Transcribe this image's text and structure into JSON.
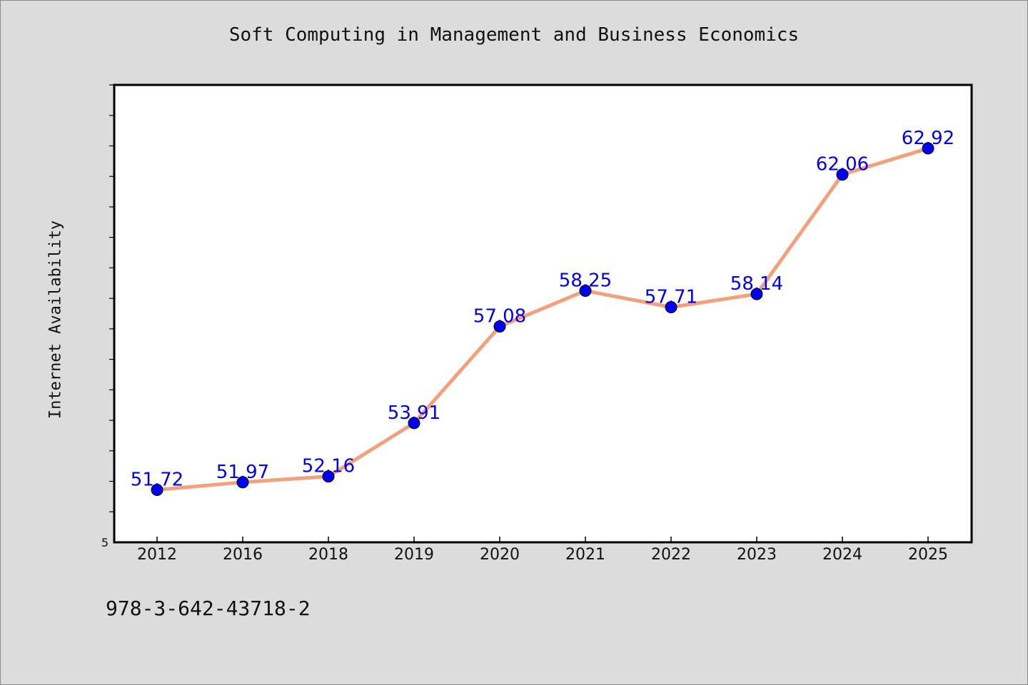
{
  "chart_data": {
    "type": "line",
    "title": "Soft Computing in Management and Business Economics",
    "xlabel": "",
    "ylabel": "Internet Availability",
    "categories": [
      "2012",
      "2016",
      "2018",
      "2019",
      "2020",
      "2021",
      "2022",
      "2023",
      "2024",
      "2025"
    ],
    "series": [
      {
        "values": [
          51.72,
          51.97,
          52.16,
          53.91,
          57.08,
          58.25,
          57.71,
          58.14,
          62.06,
          62.92
        ],
        "line_color": "#f4a07c",
        "marker_color": "#0000ee"
      }
    ],
    "data_labels": [
      "51.72",
      "51.97",
      "52.16",
      "53.91",
      "57.08",
      "58.25",
      "57.71",
      "58.14",
      "62.06",
      "62.92"
    ],
    "ylim": [
      50,
      65
    ],
    "y_tick_labels": [
      "5"
    ],
    "grid": false,
    "legend": "none"
  },
  "footer": {
    "isbn": "978-3-642-43718-2"
  }
}
